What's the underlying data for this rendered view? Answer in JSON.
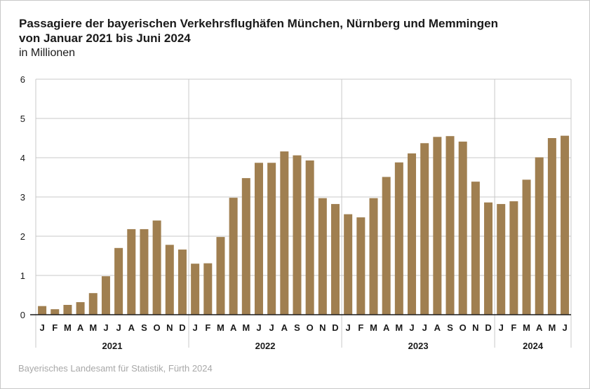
{
  "title_line1": "Passagiere der bayerischen Verkehrsflughäfen München, Nürnberg und Memmingen",
  "title_line2": "von Januar 2021 bis Juni 2024",
  "subtitle": "in Millionen",
  "source": "Bayerisches Landesamt für Statistik, Fürth 2024",
  "colors": {
    "bar": "#a07f50",
    "grid": "#c8c8c8",
    "axis": "#1a1a1a",
    "text": "#1a1a1a",
    "source": "#a8a8a8"
  },
  "chart_data": {
    "type": "bar",
    "title": "Passagiere der bayerischen Verkehrsflughäfen München, Nürnberg und Memmingen von Januar 2021 bis Juni 2024",
    "ylabel": "in Millionen",
    "xlabel": "",
    "ylim": [
      0,
      6
    ],
    "yticks": [
      0,
      1,
      2,
      3,
      4,
      5,
      6
    ],
    "grid": true,
    "groups": [
      {
        "year": "2021",
        "months": [
          "J",
          "F",
          "M",
          "A",
          "M",
          "J",
          "J",
          "A",
          "S",
          "O",
          "N",
          "D"
        ],
        "values": [
          0.22,
          0.14,
          0.25,
          0.32,
          0.55,
          0.98,
          1.7,
          2.18,
          2.18,
          2.4,
          1.78,
          1.66
        ]
      },
      {
        "year": "2022",
        "months": [
          "J",
          "F",
          "M",
          "A",
          "M",
          "J",
          "J",
          "A",
          "S",
          "O",
          "N",
          "D"
        ],
        "values": [
          1.3,
          1.31,
          1.98,
          2.98,
          3.48,
          3.87,
          3.87,
          4.16,
          4.06,
          3.93,
          2.97,
          2.82
        ]
      },
      {
        "year": "2023",
        "months": [
          "J",
          "F",
          "M",
          "A",
          "M",
          "J",
          "J",
          "A",
          "S",
          "O",
          "N",
          "D"
        ],
        "values": [
          2.56,
          2.48,
          2.97,
          3.51,
          3.88,
          4.11,
          4.37,
          4.53,
          4.55,
          4.41,
          3.39,
          2.86
        ]
      },
      {
        "year": "2024",
        "months": [
          "J",
          "F",
          "M",
          "A",
          "M",
          "J"
        ],
        "values": [
          2.82,
          2.89,
          3.44,
          4.01,
          4.5,
          4.56
        ]
      }
    ]
  }
}
